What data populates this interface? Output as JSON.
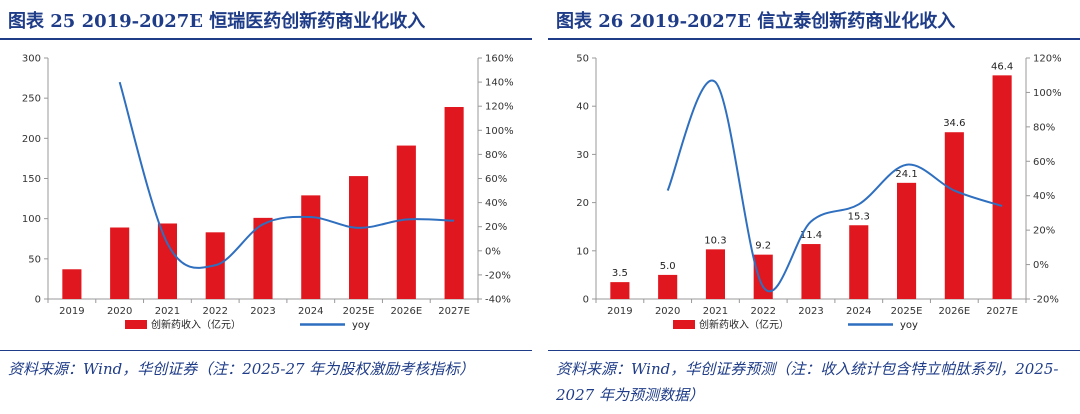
{
  "panels": [
    {
      "title": "图表 25   2019-2027E 恒瑞医药创新药商业化收入",
      "source": "资料来源：Wind，华创证券（注：2025-27 年为股权激励考核指标）",
      "chart_data": {
        "type": "bar+line",
        "categories": [
          "2019",
          "2020",
          "2021",
          "2022",
          "2023",
          "2024",
          "2025E",
          "2026E",
          "2027E"
        ],
        "series": [
          {
            "name": "创新药收入（亿元）",
            "type": "bar",
            "axis": "left",
            "color": "#e0171e",
            "values": [
              37,
              89,
              94,
              83,
              101,
              129,
              153,
              191,
              239
            ]
          },
          {
            "name": "yoy",
            "type": "line",
            "axis": "right",
            "color": "#2f6fbf",
            "values": [
              null,
              140,
              6,
              -12,
              22,
              28,
              19,
              26,
              25
            ]
          }
        ],
        "left_axis": {
          "min": 0,
          "max": 300,
          "ticks": [
            "0",
            "50",
            "100",
            "150",
            "200",
            "250",
            "300"
          ]
        },
        "right_axis": {
          "min": -40,
          "max": 160,
          "ticks": [
            "-40%",
            "-20%",
            "0%",
            "20%",
            "40%",
            "60%",
            "80%",
            "100%",
            "120%",
            "140%",
            "160%"
          ]
        },
        "data_labels": [],
        "legend": [
          "创新药收入（亿元）",
          "yoy"
        ],
        "legend_position": "bottom"
      }
    },
    {
      "title": "图表 26   2019-2027E 信立泰创新药商业化收入",
      "source": "资料来源：Wind，华创证券预测（注：收入统计包含特立帕肽系列，2025-2027 年为预测数据）",
      "chart_data": {
        "type": "bar+line",
        "categories": [
          "2019",
          "2020",
          "2021",
          "2022",
          "2023",
          "2024",
          "2025E",
          "2026E",
          "2027E"
        ],
        "series": [
          {
            "name": "创新药收入（亿元）",
            "type": "bar",
            "axis": "left",
            "color": "#e0171e",
            "values": [
              3.5,
              5.0,
              10.3,
              9.2,
              11.4,
              15.3,
              24.1,
              34.6,
              46.4
            ]
          },
          {
            "name": "yoy",
            "type": "line",
            "axis": "right",
            "color": "#2f6fbf",
            "values": [
              null,
              43,
              106,
              -13,
              25,
              35,
              58,
              43,
              34
            ]
          }
        ],
        "left_axis": {
          "min": 0,
          "max": 50,
          "ticks": [
            "0",
            "10",
            "20",
            "30",
            "40",
            "50"
          ]
        },
        "right_axis": {
          "min": -20,
          "max": 120,
          "ticks": [
            "-20%",
            "0%",
            "20%",
            "40%",
            "60%",
            "80%",
            "100%",
            "120%"
          ]
        },
        "data_labels": [
          "3.5",
          "5.0",
          "10.3",
          "9.2",
          "11.4",
          "15.3",
          "24.1",
          "34.6",
          "46.4"
        ],
        "legend": [
          "创新药收入（亿元）",
          "yoy"
        ],
        "legend_position": "bottom"
      }
    }
  ]
}
